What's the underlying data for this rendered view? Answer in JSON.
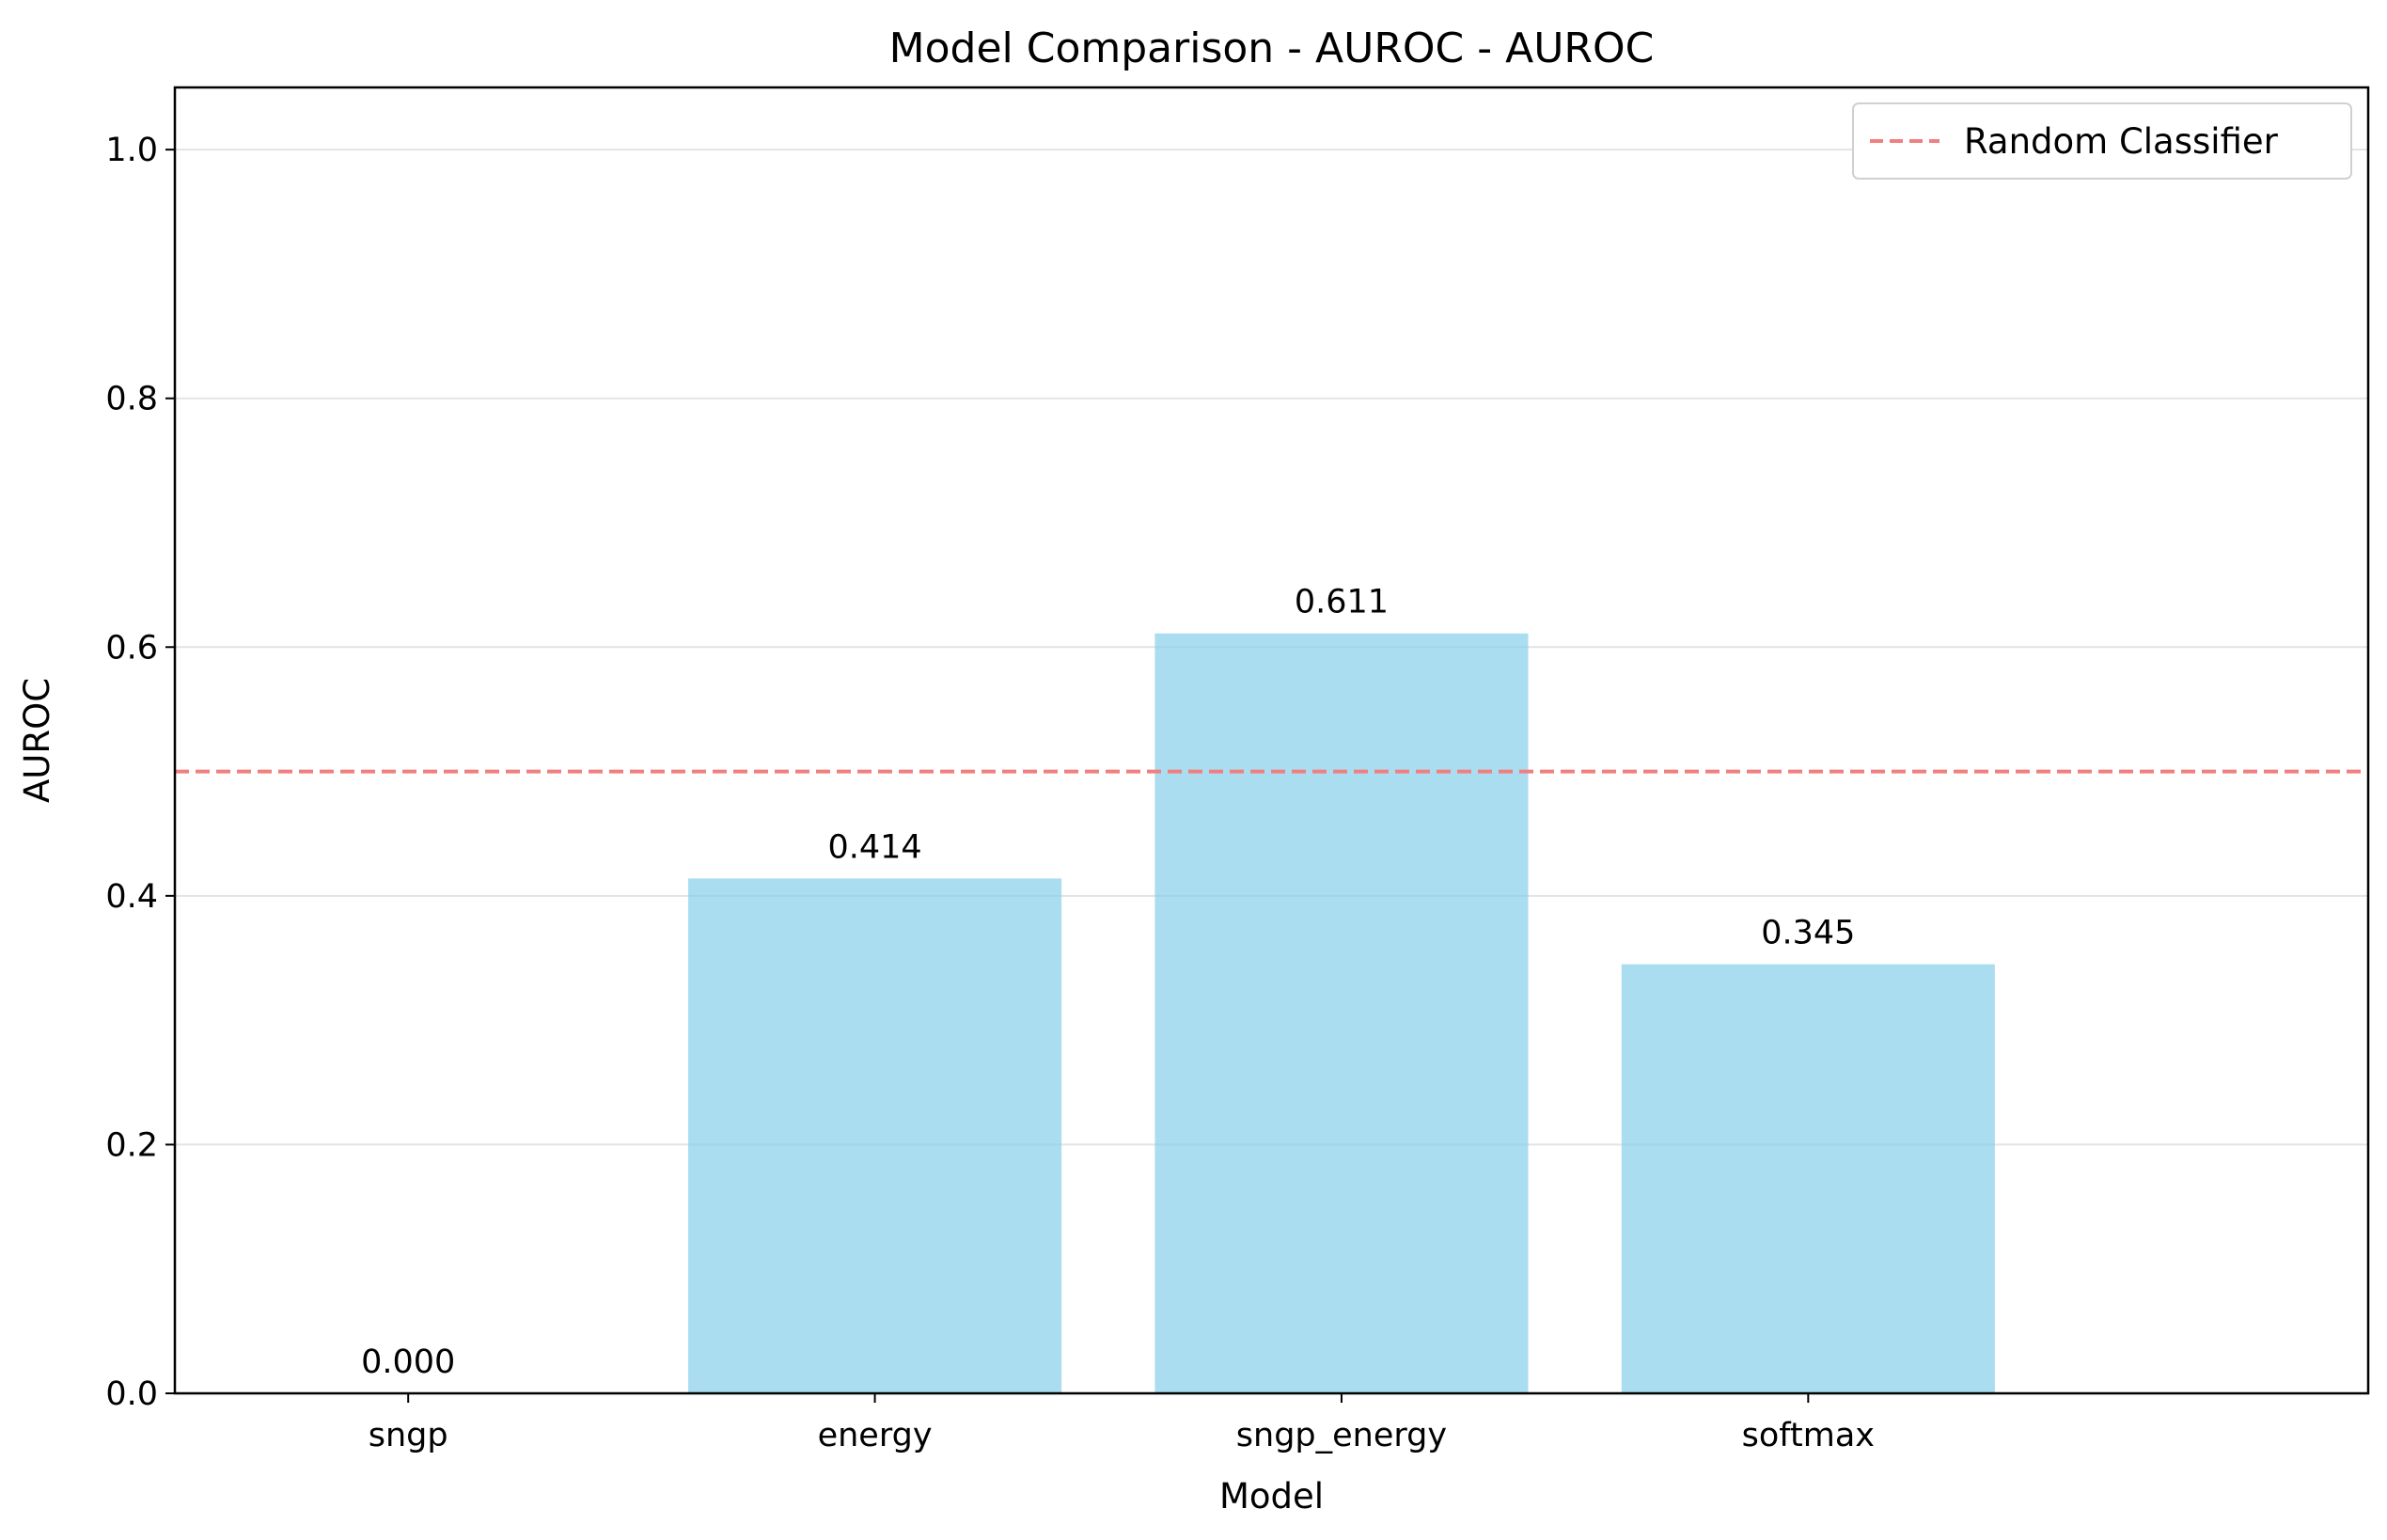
{
  "chart_data": {
    "type": "bar",
    "title": "Model Comparison - AUROC - AUROC",
    "xlabel": "Model",
    "ylabel": "AUROC",
    "categories": [
      "sngp",
      "energy",
      "sngp_energy",
      "softmax"
    ],
    "values": [
      0.0,
      0.414,
      0.611,
      0.345
    ],
    "value_labels": [
      "0.000",
      "0.414",
      "0.611",
      "0.345"
    ],
    "ylim": [
      0,
      1.05
    ],
    "yticks": [
      0.0,
      0.2,
      0.4,
      0.6,
      0.8,
      1.0
    ],
    "ytick_labels": [
      "0.0",
      "0.2",
      "0.4",
      "0.6",
      "0.8",
      "1.0"
    ],
    "grid": "y",
    "bar_color": "#87CEEB",
    "reference_line": {
      "name": "Random Classifier",
      "y": 0.5,
      "color": "#F08080",
      "style": "dashed"
    },
    "legend": {
      "placement": "upper-right",
      "entries": [
        "Random Classifier"
      ]
    }
  }
}
